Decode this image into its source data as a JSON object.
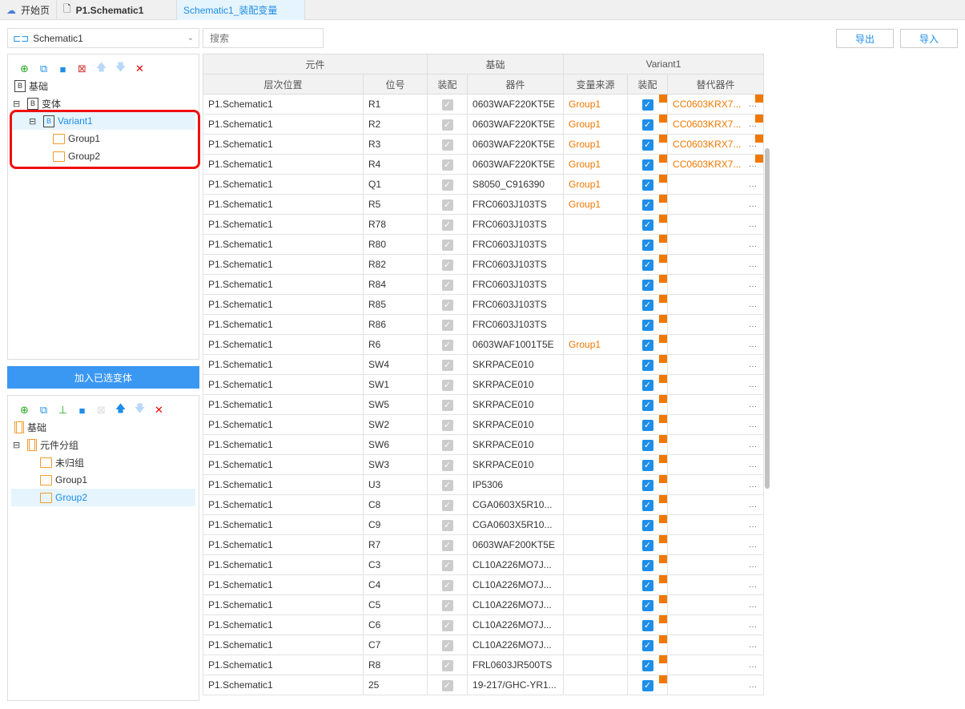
{
  "tabs": [
    {
      "label": "开始页",
      "icon": "cloud-icon"
    },
    {
      "label": "P1.Schematic1",
      "icon": "document-icon"
    },
    {
      "label": "Schematic1_装配变量"
    }
  ],
  "schematic_select": "Schematic1",
  "search_placeholder": "搜索",
  "export_label": "导出",
  "import_label": "导入",
  "variant_tree": {
    "base": "基础",
    "variants": "变体",
    "variant1": "Variant1",
    "groups": [
      "Group1",
      "Group2"
    ]
  },
  "add_selected_label": "加入已选变体",
  "group_tree": {
    "base": "基础",
    "groups_root": "元件分组",
    "items": [
      "未归组",
      "Group1",
      "Group2"
    ]
  },
  "table": {
    "group_headers": [
      "元件",
      "基础",
      "Variant1"
    ],
    "headers": [
      "层次位置",
      "位号",
      "装配",
      "器件",
      "变量来源",
      "装配",
      "替代器件"
    ],
    "rows": [
      [
        "P1.Schematic1",
        "R1",
        "0603WAF220KT5E",
        "Group1",
        "CC0603KRX7..."
      ],
      [
        "P1.Schematic1",
        "R2",
        "0603WAF220KT5E",
        "Group1",
        "CC0603KRX7..."
      ],
      [
        "P1.Schematic1",
        "R3",
        "0603WAF220KT5E",
        "Group1",
        "CC0603KRX7..."
      ],
      [
        "P1.Schematic1",
        "R4",
        "0603WAF220KT5E",
        "Group1",
        "CC0603KRX7..."
      ],
      [
        "P1.Schematic1",
        "Q1",
        "S8050_C916390",
        "Group1",
        ""
      ],
      [
        "P1.Schematic1",
        "R5",
        "FRC0603J103TS",
        "Group1",
        ""
      ],
      [
        "P1.Schematic1",
        "R78",
        "FRC0603J103TS",
        "",
        ""
      ],
      [
        "P1.Schematic1",
        "R80",
        "FRC0603J103TS",
        "",
        ""
      ],
      [
        "P1.Schematic1",
        "R82",
        "FRC0603J103TS",
        "",
        ""
      ],
      [
        "P1.Schematic1",
        "R84",
        "FRC0603J103TS",
        "",
        ""
      ],
      [
        "P1.Schematic1",
        "R85",
        "FRC0603J103TS",
        "",
        ""
      ],
      [
        "P1.Schematic1",
        "R86",
        "FRC0603J103TS",
        "",
        ""
      ],
      [
        "P1.Schematic1",
        "R6",
        "0603WAF1001T5E",
        "Group1",
        ""
      ],
      [
        "P1.Schematic1",
        "SW4",
        "SKRPACE010",
        "",
        ""
      ],
      [
        "P1.Schematic1",
        "SW1",
        "SKRPACE010",
        "",
        ""
      ],
      [
        "P1.Schematic1",
        "SW5",
        "SKRPACE010",
        "",
        ""
      ],
      [
        "P1.Schematic1",
        "SW2",
        "SKRPACE010",
        "",
        ""
      ],
      [
        "P1.Schematic1",
        "SW6",
        "SKRPACE010",
        "",
        ""
      ],
      [
        "P1.Schematic1",
        "SW3",
        "SKRPACE010",
        "",
        ""
      ],
      [
        "P1.Schematic1",
        "U3",
        "IP5306",
        "",
        ""
      ],
      [
        "P1.Schematic1",
        "C8",
        "CGA0603X5R10...",
        "",
        ""
      ],
      [
        "P1.Schematic1",
        "C9",
        "CGA0603X5R10...",
        "",
        ""
      ],
      [
        "P1.Schematic1",
        "R7",
        "0603WAF200KT5E",
        "",
        ""
      ],
      [
        "P1.Schematic1",
        "C3",
        "CL10A226MO7J...",
        "",
        ""
      ],
      [
        "P1.Schematic1",
        "C4",
        "CL10A226MO7J...",
        "",
        ""
      ],
      [
        "P1.Schematic1",
        "C5",
        "CL10A226MO7J...",
        "",
        ""
      ],
      [
        "P1.Schematic1",
        "C6",
        "CL10A226MO7J...",
        "",
        ""
      ],
      [
        "P1.Schematic1",
        "C7",
        "CL10A226MO7J...",
        "",
        ""
      ],
      [
        "P1.Schematic1",
        "R8",
        "FRL0603JR500TS",
        "",
        ""
      ],
      [
        "P1.Schematic1",
        "25",
        "19-217/GHC-YR1...",
        "",
        ""
      ]
    ]
  },
  "colors": {
    "accent": "#1e8ee8",
    "orange": "#f07800",
    "highlight": "#f01010"
  }
}
